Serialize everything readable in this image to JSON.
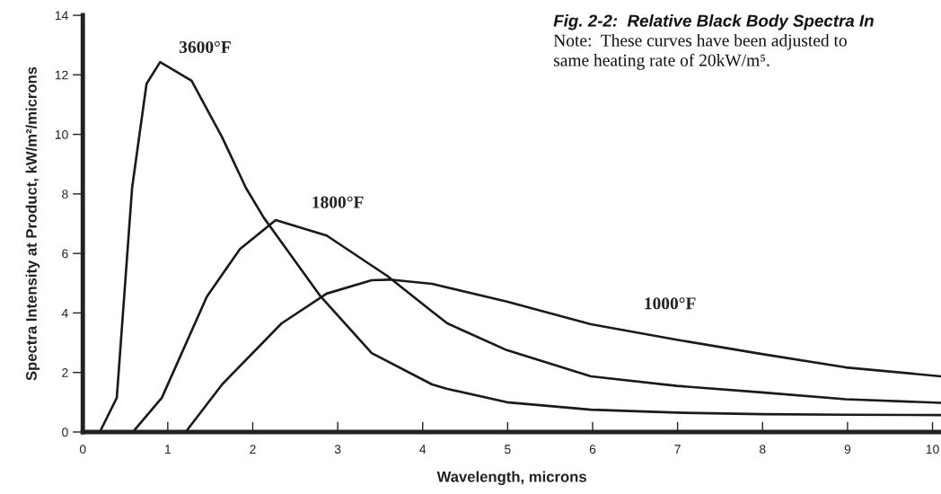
{
  "chart_data": {
    "type": "line",
    "title": "Fig. 2-2:  Relative Black Body Spectra In",
    "subtitle": "Note:  These curves have been adjusted to",
    "annotations": [
      "same heating rate of 20kW/m⁵."
    ],
    "xlabel": "Wavelength, microns",
    "ylabel": "Spectra Intensity at Product, kW/m²/microns",
    "series": [
      {
        "name": "3600°F",
        "color": "#1a1a1a",
        "x": [
          0.2,
          0.4,
          0.58,
          0.75,
          0.91,
          1.28,
          1.64,
          1.92,
          2.13,
          2.8,
          3.4,
          4.11,
          4.29,
          4.99,
          5.98,
          6.99,
          8.0,
          9.0,
          10.1
        ],
        "values": [
          0,
          1.15,
          8.2,
          11.7,
          12.43,
          11.8,
          9.9,
          8.2,
          7.2,
          4.55,
          2.65,
          1.6,
          1.45,
          1.0,
          0.75,
          0.65,
          0.6,
          0.58,
          0.57
        ]
      },
      {
        "name": "1800°F",
        "color": "#1a1a1a",
        "x": [
          0.59,
          0.93,
          1.46,
          1.85,
          2.27,
          2.87,
          3.58,
          4.11,
          4.29,
          4.99,
          5.98,
          6.99,
          7.99,
          8.98,
          10.1
        ],
        "values": [
          0,
          1.15,
          4.55,
          6.15,
          7.12,
          6.6,
          5.25,
          4.05,
          3.65,
          2.75,
          1.87,
          1.55,
          1.33,
          1.1,
          0.98
        ]
      },
      {
        "name": "1000°F",
        "color": "#1a1a1a",
        "x": [
          1.21,
          1.64,
          2.34,
          2.87,
          3.4,
          3.61,
          4.11,
          4.99,
          5.98,
          6.99,
          7.99,
          8.98,
          10.1
        ],
        "values": [
          0,
          1.6,
          3.65,
          4.65,
          5.1,
          5.12,
          4.98,
          4.38,
          3.62,
          3.1,
          2.62,
          2.17,
          1.87
        ]
      }
    ],
    "xlim": [
      0,
      10.1
    ],
    "ylim": [
      0,
      14
    ],
    "xticks": [
      0,
      1,
      2,
      3,
      4,
      5,
      6,
      7,
      8,
      9,
      10
    ],
    "yticks": [
      0,
      2,
      4,
      6,
      8,
      10,
      12,
      14
    ],
    "grid": false,
    "legend": false,
    "marker": "none",
    "line_style": "solid"
  }
}
